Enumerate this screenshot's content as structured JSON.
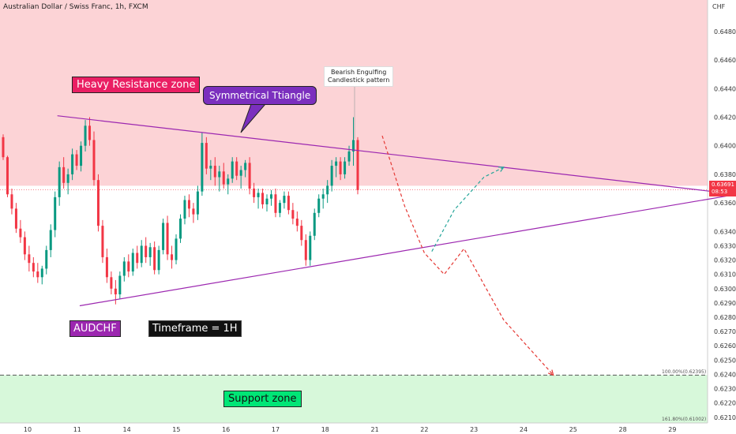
{
  "header": {
    "title": "Australian Dollar / Swiss Franc, 1h, FXCM",
    "currency_unit": "CHF"
  },
  "annotations": {
    "resistance_zone": "Heavy Resistance zone",
    "pattern": "Symmetrical Ttiangle",
    "support_zone": "Support zone",
    "symbol": "AUDCHF",
    "timeframe": "Timeframe = 1H",
    "candle_note_line1": "Bearish Engulfing",
    "candle_note_line2": "Candlestick pattern",
    "fib_100": "100.00%(0.62395)",
    "fib_161": "161.80%(0.61002)"
  },
  "price_tag": {
    "price": "0.63691",
    "countdown": "08:53"
  },
  "colors": {
    "resistance_fill": "#fcd3d6",
    "support_fill": "#d7f8da",
    "bull": "#089981",
    "bear": "#f23645",
    "triangle": "#9c27b0",
    "projection_down": "#e53935",
    "projection_up": "#26a69a"
  },
  "chart_data": {
    "type": "candlestick",
    "ylim": [
      0.6206,
      0.6502
    ],
    "yticks": [
      "0.64800",
      "0.64600",
      "0.64400",
      "0.64200",
      "0.64000",
      "0.63800",
      "0.63600",
      "0.63400",
      "0.63300",
      "0.63200",
      "0.63100",
      "0.63000",
      "0.62900",
      "0.62800",
      "0.62700",
      "0.62600",
      "0.62500",
      "0.62400",
      "0.62300",
      "0.62200",
      "0.62100"
    ],
    "xticks": [
      "10",
      "11",
      "14",
      "15",
      "16",
      "17",
      "18",
      "21",
      "22",
      "23",
      "24",
      "25",
      "28",
      "29"
    ],
    "zones": {
      "resistance": [
        0.6372,
        0.6502
      ],
      "support": [
        0.6206,
        0.62395
      ]
    },
    "last_price": 0.63691,
    "triangle": {
      "upper": [
        {
          "x": 0.6,
          "y": 0.6421
        },
        {
          "x": 14.3,
          "y": 0.6366
        }
      ],
      "lower": [
        {
          "x": 1.05,
          "y": 0.6288
        },
        {
          "x": 14.3,
          "y": 0.6366
        }
      ]
    },
    "projection_down": [
      {
        "x": 7.15,
        "y": 0.6407
      },
      {
        "x": 7.6,
        "y": 0.6358
      },
      {
        "x": 8.0,
        "y": 0.6325
      },
      {
        "x": 8.4,
        "y": 0.631
      },
      {
        "x": 8.8,
        "y": 0.6328
      },
      {
        "x": 9.6,
        "y": 0.6278
      },
      {
        "x": 10.6,
        "y": 0.62395
      }
    ],
    "projection_up": [
      {
        "x": 8.15,
        "y": 0.6326
      },
      {
        "x": 8.6,
        "y": 0.6355
      },
      {
        "x": 9.2,
        "y": 0.6378
      },
      {
        "x": 9.6,
        "y": 0.6385
      }
    ],
    "candles": [
      {
        "o": 0.6406,
        "h": 0.6408,
        "l": 0.639,
        "c": 0.6392
      },
      {
        "o": 0.6392,
        "h": 0.6393,
        "l": 0.6364,
        "c": 0.6366
      },
      {
        "o": 0.6366,
        "h": 0.637,
        "l": 0.6352,
        "c": 0.6356
      },
      {
        "o": 0.6356,
        "h": 0.636,
        "l": 0.6339,
        "c": 0.6342
      },
      {
        "o": 0.6342,
        "h": 0.6348,
        "l": 0.6332,
        "c": 0.6336
      },
      {
        "o": 0.6336,
        "h": 0.634,
        "l": 0.632,
        "c": 0.6324
      },
      {
        "o": 0.6324,
        "h": 0.633,
        "l": 0.6312,
        "c": 0.6318
      },
      {
        "o": 0.6318,
        "h": 0.6322,
        "l": 0.6308,
        "c": 0.6312
      },
      {
        "o": 0.6312,
        "h": 0.6318,
        "l": 0.6304,
        "c": 0.6308
      },
      {
        "o": 0.6308,
        "h": 0.6316,
        "l": 0.6303,
        "c": 0.6314
      },
      {
        "o": 0.6314,
        "h": 0.633,
        "l": 0.631,
        "c": 0.6327
      },
      {
        "o": 0.6327,
        "h": 0.6345,
        "l": 0.6322,
        "c": 0.6341
      },
      {
        "o": 0.6341,
        "h": 0.6368,
        "l": 0.6336,
        "c": 0.6364
      },
      {
        "o": 0.6364,
        "h": 0.6389,
        "l": 0.6358,
        "c": 0.6385
      },
      {
        "o": 0.6385,
        "h": 0.6392,
        "l": 0.637,
        "c": 0.6374
      },
      {
        "o": 0.6374,
        "h": 0.6384,
        "l": 0.6366,
        "c": 0.638
      },
      {
        "o": 0.638,
        "h": 0.6398,
        "l": 0.6376,
        "c": 0.6394
      },
      {
        "o": 0.6394,
        "h": 0.6397,
        "l": 0.6383,
        "c": 0.6386
      },
      {
        "o": 0.6386,
        "h": 0.6403,
        "l": 0.6382,
        "c": 0.64
      },
      {
        "o": 0.64,
        "h": 0.6418,
        "l": 0.6396,
        "c": 0.6414
      },
      {
        "o": 0.6414,
        "h": 0.642,
        "l": 0.64,
        "c": 0.6404
      },
      {
        "o": 0.6404,
        "h": 0.641,
        "l": 0.6372,
        "c": 0.6376
      },
      {
        "o": 0.6376,
        "h": 0.638,
        "l": 0.634,
        "c": 0.6344
      },
      {
        "o": 0.6344,
        "h": 0.6348,
        "l": 0.6318,
        "c": 0.6322
      },
      {
        "o": 0.6322,
        "h": 0.6328,
        "l": 0.6304,
        "c": 0.6308
      },
      {
        "o": 0.6308,
        "h": 0.6312,
        "l": 0.6296,
        "c": 0.63
      },
      {
        "o": 0.63,
        "h": 0.6306,
        "l": 0.6289,
        "c": 0.6296
      },
      {
        "o": 0.6296,
        "h": 0.6312,
        "l": 0.6293,
        "c": 0.6309
      },
      {
        "o": 0.6309,
        "h": 0.6322,
        "l": 0.6305,
        "c": 0.6319
      },
      {
        "o": 0.6319,
        "h": 0.6324,
        "l": 0.6308,
        "c": 0.6312
      },
      {
        "o": 0.6312,
        "h": 0.6328,
        "l": 0.6309,
        "c": 0.6325
      },
      {
        "o": 0.6325,
        "h": 0.633,
        "l": 0.6314,
        "c": 0.6318
      },
      {
        "o": 0.6318,
        "h": 0.6334,
        "l": 0.6315,
        "c": 0.633
      },
      {
        "o": 0.633,
        "h": 0.6336,
        "l": 0.6318,
        "c": 0.6322
      },
      {
        "o": 0.6322,
        "h": 0.6332,
        "l": 0.6316,
        "c": 0.6329
      },
      {
        "o": 0.6329,
        "h": 0.6333,
        "l": 0.631,
        "c": 0.6313
      },
      {
        "o": 0.6313,
        "h": 0.633,
        "l": 0.631,
        "c": 0.6327
      },
      {
        "o": 0.6327,
        "h": 0.6349,
        "l": 0.6324,
        "c": 0.6346
      },
      {
        "o": 0.6346,
        "h": 0.6351,
        "l": 0.632,
        "c": 0.6324
      },
      {
        "o": 0.6324,
        "h": 0.633,
        "l": 0.6314,
        "c": 0.632
      },
      {
        "o": 0.632,
        "h": 0.6338,
        "l": 0.6317,
        "c": 0.6335
      },
      {
        "o": 0.6335,
        "h": 0.6352,
        "l": 0.6332,
        "c": 0.6349
      },
      {
        "o": 0.6349,
        "h": 0.6365,
        "l": 0.6345,
        "c": 0.6362
      },
      {
        "o": 0.6362,
        "h": 0.6366,
        "l": 0.635,
        "c": 0.6356
      },
      {
        "o": 0.6356,
        "h": 0.636,
        "l": 0.6346,
        "c": 0.6352
      },
      {
        "o": 0.6352,
        "h": 0.6372,
        "l": 0.6348,
        "c": 0.6368
      },
      {
        "o": 0.6368,
        "h": 0.6409,
        "l": 0.6365,
        "c": 0.6402
      },
      {
        "o": 0.6402,
        "h": 0.6406,
        "l": 0.638,
        "c": 0.6384
      },
      {
        "o": 0.6384,
        "h": 0.639,
        "l": 0.6376,
        "c": 0.6386
      },
      {
        "o": 0.6386,
        "h": 0.6392,
        "l": 0.6372,
        "c": 0.6378
      },
      {
        "o": 0.6378,
        "h": 0.6386,
        "l": 0.6368,
        "c": 0.6382
      },
      {
        "o": 0.6382,
        "h": 0.6388,
        "l": 0.637,
        "c": 0.6373
      },
      {
        "o": 0.6373,
        "h": 0.638,
        "l": 0.6366,
        "c": 0.6377
      },
      {
        "o": 0.6377,
        "h": 0.6392,
        "l": 0.6374,
        "c": 0.6389
      },
      {
        "o": 0.6389,
        "h": 0.6392,
        "l": 0.6376,
        "c": 0.6379
      },
      {
        "o": 0.6379,
        "h": 0.6386,
        "l": 0.637,
        "c": 0.6383
      },
      {
        "o": 0.6383,
        "h": 0.639,
        "l": 0.6378,
        "c": 0.6388
      },
      {
        "o": 0.6388,
        "h": 0.6392,
        "l": 0.6366,
        "c": 0.637
      },
      {
        "o": 0.637,
        "h": 0.6374,
        "l": 0.636,
        "c": 0.6364
      },
      {
        "o": 0.6364,
        "h": 0.637,
        "l": 0.6356,
        "c": 0.6367
      },
      {
        "o": 0.6367,
        "h": 0.637,
        "l": 0.6356,
        "c": 0.6359
      },
      {
        "o": 0.6359,
        "h": 0.6366,
        "l": 0.6354,
        "c": 0.6363
      },
      {
        "o": 0.6363,
        "h": 0.6369,
        "l": 0.6358,
        "c": 0.6366
      },
      {
        "o": 0.6366,
        "h": 0.637,
        "l": 0.635,
        "c": 0.6353
      },
      {
        "o": 0.6353,
        "h": 0.6362,
        "l": 0.635,
        "c": 0.636
      },
      {
        "o": 0.636,
        "h": 0.6368,
        "l": 0.6356,
        "c": 0.6365
      },
      {
        "o": 0.6365,
        "h": 0.6368,
        "l": 0.6352,
        "c": 0.6355
      },
      {
        "o": 0.6355,
        "h": 0.636,
        "l": 0.6345,
        "c": 0.6349
      },
      {
        "o": 0.6349,
        "h": 0.6354,
        "l": 0.634,
        "c": 0.6344
      },
      {
        "o": 0.6344,
        "h": 0.6348,
        "l": 0.633,
        "c": 0.6334
      },
      {
        "o": 0.6334,
        "h": 0.6338,
        "l": 0.6316,
        "c": 0.632
      },
      {
        "o": 0.632,
        "h": 0.634,
        "l": 0.6316,
        "c": 0.6337
      },
      {
        "o": 0.6337,
        "h": 0.6356,
        "l": 0.6334,
        "c": 0.6353
      },
      {
        "o": 0.6353,
        "h": 0.6366,
        "l": 0.635,
        "c": 0.6363
      },
      {
        "o": 0.6363,
        "h": 0.637,
        "l": 0.6356,
        "c": 0.6366
      },
      {
        "o": 0.6366,
        "h": 0.6376,
        "l": 0.636,
        "c": 0.6372
      },
      {
        "o": 0.6372,
        "h": 0.639,
        "l": 0.6368,
        "c": 0.6386
      },
      {
        "o": 0.6386,
        "h": 0.6392,
        "l": 0.6378,
        "c": 0.6389
      },
      {
        "o": 0.6389,
        "h": 0.6392,
        "l": 0.6376,
        "c": 0.638
      },
      {
        "o": 0.638,
        "h": 0.6392,
        "l": 0.6377,
        "c": 0.6389
      },
      {
        "o": 0.6389,
        "h": 0.64,
        "l": 0.6386,
        "c": 0.6396
      },
      {
        "o": 0.6396,
        "h": 0.642,
        "l": 0.6386,
        "c": 0.6404
      },
      {
        "o": 0.6404,
        "h": 0.6406,
        "l": 0.6366,
        "c": 0.6369
      }
    ]
  }
}
